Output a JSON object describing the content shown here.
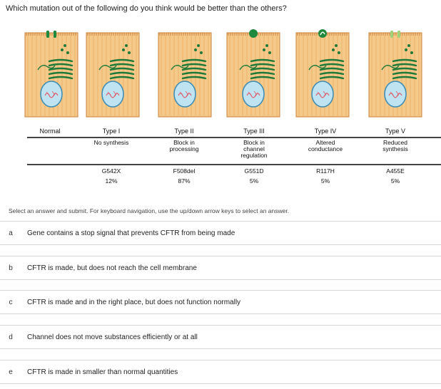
{
  "question": "Which mutation out of the following do you think would be better than the others?",
  "figure": {
    "columns": [
      {
        "type": "Normal",
        "effect": "",
        "mutation": "",
        "frequency": ""
      },
      {
        "type": "Type I",
        "effect": "No synthesis",
        "mutation": "G542X",
        "frequency": "12%"
      },
      {
        "type": "Type II",
        "effect": "Block in processing",
        "mutation": "F508del",
        "frequency": "87%"
      },
      {
        "type": "Type III",
        "effect": "Block in channel regulation",
        "mutation": "G551D",
        "frequency": "5%"
      },
      {
        "type": "Type IV",
        "effect": "Altered conductance",
        "mutation": "R117H",
        "frequency": "5%"
      },
      {
        "type": "Type V",
        "effect": "Reduced synthesis",
        "mutation": "A455E",
        "frequency": "5%"
      }
    ],
    "colors": {
      "cell_fill": "#f5c98a",
      "cell_stripe": "#e8a957",
      "membrane": "#c9803a",
      "golgi": "#1f7a3a",
      "nucleus": "#bfe3f0",
      "nucleus_border": "#3a8bb5",
      "dna": "#e05a6a",
      "channel_normal": "#1f8a3d",
      "channel_weak": "#9fd07a"
    }
  },
  "instructions": "Select an answer and submit. For keyboard navigation, use the up/down arrow keys to select an answer.",
  "options": [
    {
      "letter": "a",
      "text": "Gene contains a stop signal that prevents CFTR from being made"
    },
    {
      "letter": "b",
      "text": "CFTR is made, but does not reach the cell membrane"
    },
    {
      "letter": "c",
      "text": "CFTR is made and in the right place, but does not function normally"
    },
    {
      "letter": "d",
      "text": "Channel does not move substances efficiently or at all"
    },
    {
      "letter": "e",
      "text": "CFTR is made in smaller than normal quantities"
    }
  ]
}
